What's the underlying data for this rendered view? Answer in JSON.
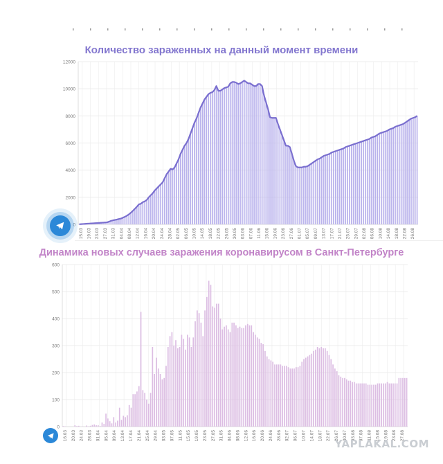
{
  "watermark": "YAPLAKAL.COM",
  "icons": {
    "telegram": "telegram-paper-plane-icon"
  },
  "colors": {
    "chart1_title": "#8377cf",
    "chart1_bar": "#b9b2ec",
    "chart1_line": "#7a6fcf",
    "chart2_title": "#c284c8",
    "chart2_bar": "#dcbde3",
    "grid": "#ececec",
    "tg": "#2b88d8"
  },
  "chart_data": [
    {
      "type": "bar",
      "title": "Количество зараженных на данный момент времени",
      "ylim": [
        0,
        12000
      ],
      "yticks": [
        "0",
        "2000",
        "4000",
        "6000",
        "8000",
        "10000",
        "12000"
      ],
      "grid": true,
      "line_overlay": true,
      "x_labels": [
        "15.03",
        "19.03",
        "23.03",
        "27.03",
        "31.03",
        "04.04",
        "08.04",
        "12.04",
        "16.04",
        "20.04",
        "24.04",
        "28.04",
        "02.05",
        "06.05",
        "10.05",
        "14.05",
        "18.05",
        "22.05",
        "26.05",
        "30.05",
        "03.06",
        "07.06",
        "11.06",
        "15.06",
        "19.06",
        "23.06",
        "27.06",
        "01.07",
        "05.07",
        "09.07",
        "13.07",
        "17.07",
        "21.07",
        "25.07",
        "29.07",
        "02.08",
        "06.08",
        "10.08",
        "14.08",
        "18.08",
        "22.08",
        "26.08"
      ],
      "values": [
        10,
        20,
        30,
        40,
        50,
        60,
        70,
        80,
        90,
        100,
        110,
        120,
        130,
        140,
        150,
        200,
        260,
        300,
        330,
        360,
        400,
        430,
        500,
        560,
        640,
        740,
        860,
        1000,
        1150,
        1300,
        1480,
        1520,
        1640,
        1700,
        1800,
        2000,
        2150,
        2300,
        2500,
        2650,
        2800,
        2950,
        3100,
        3400,
        3700,
        3900,
        4100,
        4050,
        4200,
        4500,
        4800,
        5200,
        5500,
        5800,
        6000,
        6300,
        6700,
        7100,
        7500,
        7800,
        8200,
        8600,
        8900,
        9200,
        9400,
        9600,
        9700,
        9750,
        9900,
        10200,
        9850,
        9850,
        9950,
        10050,
        10100,
        10150,
        10400,
        10500,
        10500,
        10450,
        10350,
        10400,
        10500,
        10600,
        10500,
        10400,
        10400,
        10300,
        10200,
        10200,
        10350,
        10350,
        10200,
        9500,
        9000,
        8500,
        7900,
        7850,
        7850,
        7850,
        7400,
        7000,
        6600,
        6200,
        5800,
        5800,
        5700,
        5200,
        4700,
        4300,
        4200,
        4200,
        4200,
        4250,
        4250,
        4300,
        4400,
        4500,
        4600,
        4700,
        4800,
        4850,
        4950,
        5050,
        5100,
        5150,
        5200,
        5300,
        5350,
        5400,
        5450,
        5500,
        5550,
        5600,
        5700,
        5750,
        5800,
        5850,
        5900,
        5950,
        6000,
        6050,
        6100,
        6150,
        6200,
        6250,
        6300,
        6400,
        6450,
        6500,
        6600,
        6700,
        6750,
        6800,
        6850,
        6900,
        7000,
        7050,
        7100,
        7200,
        7250,
        7300,
        7350,
        7400,
        7500,
        7600,
        7700,
        7800,
        7850,
        7900,
        8000
      ]
    },
    {
      "type": "bar",
      "title": "Динамика новых случаев заражения коронавирусом в Санкт-Петербурге",
      "ylim": [
        0,
        600
      ],
      "yticks": [
        "0",
        "100",
        "200",
        "300",
        "400",
        "500",
        "600"
      ],
      "grid": true,
      "x_labels": [
        "16.03",
        "20.03",
        "24.03",
        "28.03",
        "01.04",
        "05.04",
        "09.04",
        "13.04",
        "17.04",
        "21.04",
        "25.04",
        "29.04",
        "03.05",
        "07.05",
        "11.05",
        "15.05",
        "19.05",
        "23.05",
        "27.05",
        "31.05",
        "04.06",
        "08.06",
        "12.06",
        "16.06",
        "20.06",
        "24.06",
        "28.06",
        "02.07",
        "06.07",
        "10.07",
        "14.07",
        "18.07",
        "22.07",
        "26.07",
        "30.07",
        "03.08",
        "07.08",
        "11.08",
        "15.08",
        "19.08",
        "23.08",
        "27.08"
      ],
      "values": [
        2,
        1,
        0,
        0,
        0,
        0,
        5,
        2,
        3,
        0,
        1,
        0,
        4,
        1,
        3,
        6,
        8,
        5,
        5,
        2,
        15,
        10,
        48,
        30,
        20,
        12,
        35,
        15,
        22,
        70,
        25,
        40,
        35,
        42,
        80,
        70,
        120,
        120,
        130,
        150,
        425,
        135,
        125,
        100,
        85,
        125,
        295,
        195,
        255,
        215,
        195,
        175,
        180,
        225,
        295,
        335,
        350,
        300,
        320,
        290,
        295,
        340,
        325,
        285,
        340,
        330,
        295,
        330,
        390,
        430,
        420,
        385,
        335,
        430,
        480,
        540,
        525,
        445,
        440,
        455,
        455,
        400,
        360,
        370,
        375,
        360,
        350,
        385,
        385,
        375,
        365,
        370,
        365,
        365,
        375,
        380,
        375,
        375,
        350,
        340,
        330,
        325,
        310,
        305,
        280,
        260,
        250,
        245,
        240,
        230,
        230,
        230,
        230,
        225,
        225,
        225,
        220,
        215,
        215,
        215,
        220,
        220,
        225,
        240,
        250,
        255,
        260,
        265,
        270,
        280,
        285,
        295,
        290,
        295,
        290,
        290,
        280,
        265,
        250,
        230,
        215,
        205,
        190,
        185,
        180,
        180,
        175,
        170,
        170,
        165,
        165,
        160,
        160,
        160,
        160,
        160,
        160,
        155,
        155,
        155,
        155,
        155,
        160,
        160,
        160,
        160,
        160,
        165,
        160,
        160,
        160,
        160,
        160,
        180,
        180,
        180,
        180,
        180
      ]
    }
  ]
}
